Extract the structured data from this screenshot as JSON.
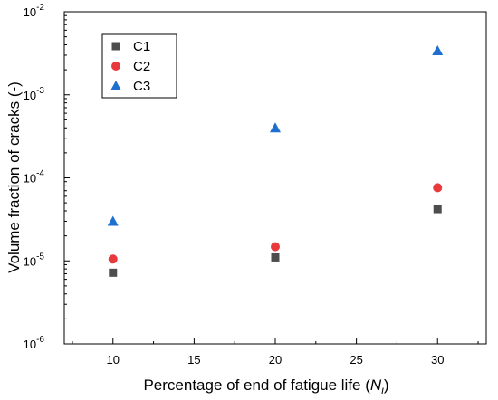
{
  "chart_data": {
    "type": "scatter",
    "title": "",
    "xlabel": {
      "prefix": "Percentage of end of fatigue life (",
      "var": "N",
      "sub": "i",
      "suffix": ")"
    },
    "ylabel": "Volume fraction of cracks (-)",
    "x_ticks": [
      "10",
      "15",
      "20",
      "25",
      "30"
    ],
    "y_ticks": [
      {
        "exp": -6,
        "base": "10",
        "sup": "-6"
      },
      {
        "exp": -5,
        "base": "10",
        "sup": "-5"
      },
      {
        "exp": -4,
        "base": "10",
        "sup": "-4"
      },
      {
        "exp": -3,
        "base": "10",
        "sup": "-3"
      },
      {
        "exp": -2,
        "base": "10",
        "sup": "-2"
      }
    ],
    "xlim": [
      7,
      33
    ],
    "ylim": [
      1e-06,
      0.01
    ],
    "yscale": "log",
    "grid": false,
    "legend_position": "top-left",
    "series": [
      {
        "name": "C1",
        "marker": "square",
        "color": "#4d4d4d",
        "x": [
          10,
          20,
          30
        ],
        "y": [
          7.2e-06,
          1.1e-05,
          4.2e-05
        ]
      },
      {
        "name": "C2",
        "marker": "circle",
        "color": "#e8393d",
        "x": [
          10,
          20,
          30
        ],
        "y": [
          1.05e-05,
          1.48e-05,
          7.6e-05
        ]
      },
      {
        "name": "C3",
        "marker": "triangle",
        "color": "#1f6fd1",
        "x": [
          10,
          20,
          30
        ],
        "y": [
          3e-05,
          0.0004,
          0.0034
        ]
      }
    ]
  }
}
